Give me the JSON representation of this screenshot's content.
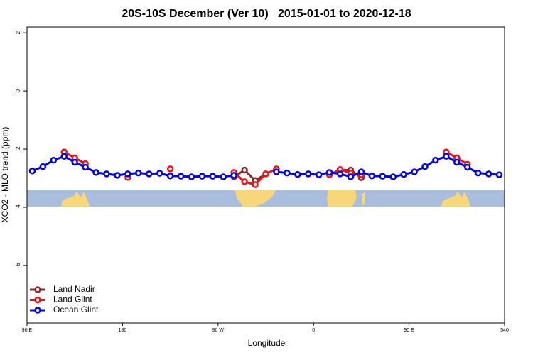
{
  "chart_data": {
    "type": "line",
    "title": "20S-10S December (Ver 10)   2015-01-01 to 2020-12-18",
    "xlabel": "Longitude",
    "ylabel": "XCO2 - MLO trend (ppm)",
    "x": [
      95,
      105,
      115,
      125,
      135,
      145,
      155,
      165,
      175,
      185,
      195,
      205,
      215,
      225,
      235,
      245,
      255,
      265,
      275,
      285,
      295,
      305,
      315,
      325,
      335,
      345,
      355,
      365,
      375,
      385,
      395,
      405,
      415,
      425,
      435,
      445,
      455,
      465,
      475,
      485,
      495,
      505,
      515,
      525,
      535
    ],
    "xlim": [
      90,
      540
    ],
    "xticks": [
      {
        "value": 90,
        "label": "90 E"
      },
      180,
      {
        "value": 270,
        "label": "90 W"
      },
      {
        "value": 360,
        "label": "0"
      },
      {
        "value": 450,
        "label": "90 E"
      },
      540
    ],
    "ylim": [
      -7.98,
      2.2
    ],
    "yticks": [
      -6,
      -4,
      -2,
      0,
      2
    ],
    "legend": "bottom-left",
    "series": [
      {
        "name": "Land Nadir",
        "color": "#8b2a2a",
        "values": [
          null,
          null,
          null,
          null,
          null,
          null,
          null,
          null,
          null,
          null,
          null,
          null,
          null,
          null,
          null,
          null,
          null,
          null,
          null,
          -2.95,
          -2.72,
          -3.08,
          -2.85,
          null,
          null,
          null,
          null,
          null,
          null,
          -2.72,
          -2.72,
          -2.98,
          null,
          null,
          null,
          null,
          null,
          null,
          null,
          null,
          null,
          null,
          null,
          null,
          null
        ]
      },
      {
        "name": "Land Glint",
        "color": "#ee1111",
        "values": [
          null,
          null,
          null,
          -2.1,
          -2.3,
          -2.5,
          null,
          null,
          null,
          -2.97,
          null,
          null,
          null,
          -2.68,
          null,
          null,
          null,
          null,
          null,
          -2.8,
          -3.12,
          -3.22,
          -2.85,
          -2.68,
          null,
          null,
          null,
          null,
          -2.88,
          -2.7,
          -2.82,
          -2.88,
          null,
          null,
          null,
          null,
          null,
          null,
          null,
          -2.1,
          -2.3,
          -2.52,
          null,
          null,
          null
        ]
      },
      {
        "name": "Ocean Glint",
        "color": "#0000ee",
        "values": [
          -2.75,
          -2.6,
          -2.38,
          -2.25,
          -2.45,
          -2.62,
          -2.8,
          -2.85,
          -2.9,
          -2.85,
          -2.82,
          -2.85,
          -2.83,
          -2.92,
          -2.93,
          -2.95,
          -2.93,
          -2.93,
          -2.95,
          -2.9,
          null,
          null,
          null,
          -2.78,
          -2.82,
          -2.87,
          -2.85,
          -2.88,
          -2.8,
          -2.85,
          -2.95,
          -2.78,
          -2.92,
          -2.93,
          -2.95,
          -2.87,
          -2.78,
          -2.6,
          -2.38,
          -2.25,
          -2.45,
          -2.62,
          -2.82,
          -2.85,
          -2.88
        ]
      }
    ]
  }
}
